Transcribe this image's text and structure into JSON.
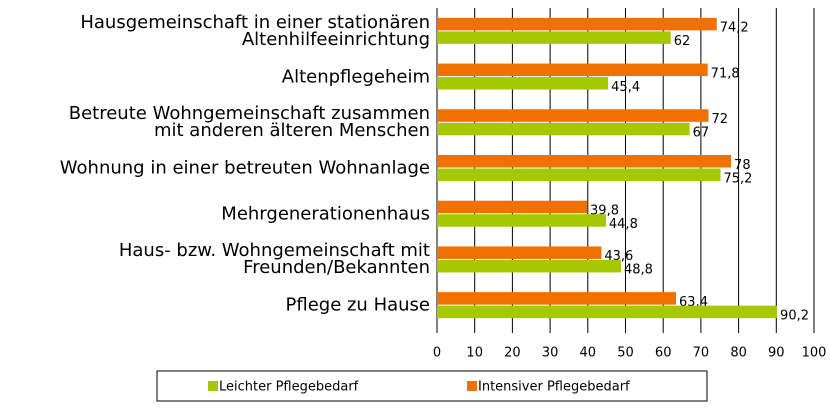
{
  "chart_data": {
    "type": "bar",
    "orientation": "horizontal",
    "categories": [
      "Hausgemeinschaft in einer stationären\nAltenhilfeeinrichtung",
      "Altenpflegeheim",
      "Betreute Wohngemeinschaft zusammen\nmit anderen älteren Menschen",
      "Wohnung in einer betreuten Wohnanlage",
      "Mehrgenerationenhaus",
      "Haus- bzw. Wohngemeinschaft mit\nFreunden/Bekannten",
      "Pflege zu Hause"
    ],
    "series": [
      {
        "name": "Leichter Pflegebedarf",
        "color": "#a6c800",
        "values": [
          62,
          45.4,
          67,
          75.2,
          44.8,
          48.8,
          90.2
        ],
        "value_labels": [
          "62",
          "45,4",
          "67",
          "75,2",
          "44,8",
          "48,8",
          "90,2"
        ]
      },
      {
        "name": "Intensiver Pflegebedarf",
        "color": "#f07000",
        "values": [
          74.2,
          71.8,
          72,
          78,
          39.8,
          43.6,
          63.4
        ],
        "value_labels": [
          "74,2",
          "71,8",
          "72",
          "78",
          "39,8",
          "43,6",
          "63,4"
        ]
      }
    ],
    "xlim": [
      0,
      100
    ],
    "xticks": [
      0,
      10,
      20,
      30,
      40,
      50,
      60,
      70,
      80,
      90,
      100
    ],
    "grid": true,
    "legend": "bottom"
  }
}
